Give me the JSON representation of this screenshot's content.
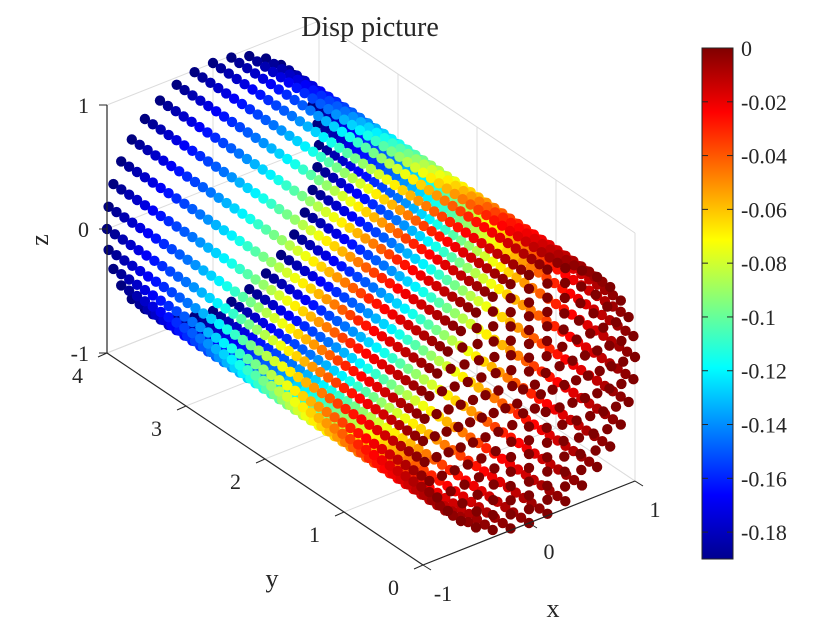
{
  "chart_data": {
    "type": "scatter3d",
    "title": "Disp picture",
    "xlabel": "x",
    "ylabel": "y",
    "zlabel": "z",
    "xlim": [
      -1,
      1
    ],
    "ylim": [
      0,
      4
    ],
    "zlim": [
      -1,
      1
    ],
    "x_ticks": [
      "-1",
      "0",
      "1"
    ],
    "y_ticks": [
      "0",
      "1",
      "2",
      "3",
      "4"
    ],
    "z_ticks": [
      "-1",
      "0",
      "1"
    ],
    "grid": true,
    "colormap": "jet",
    "color_range": [
      -0.19,
      0
    ],
    "colorbar_ticks": [
      "0",
      "-0.02",
      "-0.04",
      "-0.06",
      "-0.08",
      "-0.1",
      "-0.12",
      "-0.14",
      "-0.16",
      "-0.18"
    ],
    "shape": "cylinder of points along y-axis, radius 1, length 4",
    "color_at_y": {
      "y": [
        0,
        1,
        2,
        3,
        4
      ],
      "disp": [
        0,
        -0.03,
        -0.085,
        -0.145,
        -0.19
      ]
    }
  }
}
